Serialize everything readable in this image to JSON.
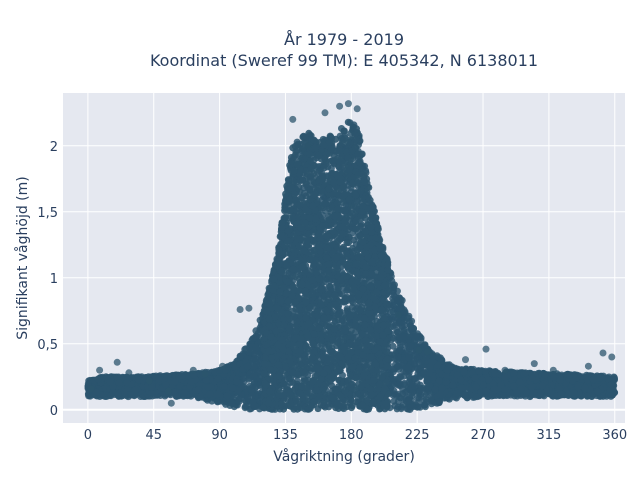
{
  "chart_data": {
    "type": "scatter",
    "title_lines": [
      "År 1979 - 2019",
      "Koordinat (Sweref 99 TM): E 405342, N 6138011"
    ],
    "xlabel": "Vågriktning (grader)",
    "ylabel": "Signifikant våghöjd (m)",
    "xlim": [
      -17,
      367
    ],
    "ylim": [
      -0.1,
      2.4
    ],
    "x_ticks": [
      0,
      45,
      90,
      135,
      180,
      225,
      270,
      315,
      360
    ],
    "x_tick_labels": [
      "0",
      "45",
      "90",
      "135",
      "180",
      "225",
      "270",
      "315",
      "360"
    ],
    "y_ticks": [
      0,
      0.5,
      1,
      1.5,
      2
    ],
    "y_tick_labels": [
      "0",
      "0,5",
      "1",
      "1,5",
      "2"
    ],
    "grid": true,
    "marker_color": "#2c556e",
    "envelope": {
      "direction": [
        0,
        10,
        30,
        50,
        70,
        90,
        100,
        110,
        120,
        130,
        135,
        140,
        150,
        160,
        170,
        180,
        185,
        190,
        200,
        210,
        220,
        230,
        240,
        250,
        270,
        300,
        330,
        360
      ],
      "upper": [
        0.22,
        0.25,
        0.25,
        0.26,
        0.27,
        0.3,
        0.35,
        0.5,
        0.75,
        1.2,
        1.65,
        2.0,
        2.1,
        2.05,
        2.1,
        2.2,
        2.1,
        1.8,
        1.3,
        0.95,
        0.7,
        0.5,
        0.4,
        0.32,
        0.3,
        0.28,
        0.27,
        0.25
      ],
      "lower": [
        0.1,
        0.1,
        0.1,
        0.1,
        0.1,
        0.05,
        0.02,
        0,
        0,
        0,
        0,
        0,
        0,
        0,
        0,
        0,
        0,
        0,
        0,
        0,
        0,
        0.02,
        0.05,
        0.08,
        0.1,
        0.1,
        0.1,
        0.1
      ]
    },
    "sample_points": [
      [
        2,
        0.16
      ],
      [
        8,
        0.3
      ],
      [
        20,
        0.36
      ],
      [
        28,
        0.28
      ],
      [
        42,
        0.22
      ],
      [
        55,
        0.14
      ],
      [
        57,
        0.05
      ],
      [
        72,
        0.3
      ],
      [
        80,
        0.27
      ],
      [
        92,
        0.33
      ],
      [
        104,
        0.76
      ],
      [
        110,
        0.77
      ],
      [
        140,
        2.2
      ],
      [
        150,
        2.0
      ],
      [
        162,
        2.25
      ],
      [
        172,
        2.3
      ],
      [
        178,
        2.32
      ],
      [
        184,
        2.28
      ],
      [
        212,
        0.72
      ],
      [
        226,
        0.45
      ],
      [
        232,
        0.44
      ],
      [
        258,
        0.38
      ],
      [
        272,
        0.46
      ],
      [
        285,
        0.3
      ],
      [
        305,
        0.35
      ],
      [
        318,
        0.3
      ],
      [
        342,
        0.33
      ],
      [
        352,
        0.43
      ],
      [
        358,
        0.4
      ]
    ]
  }
}
